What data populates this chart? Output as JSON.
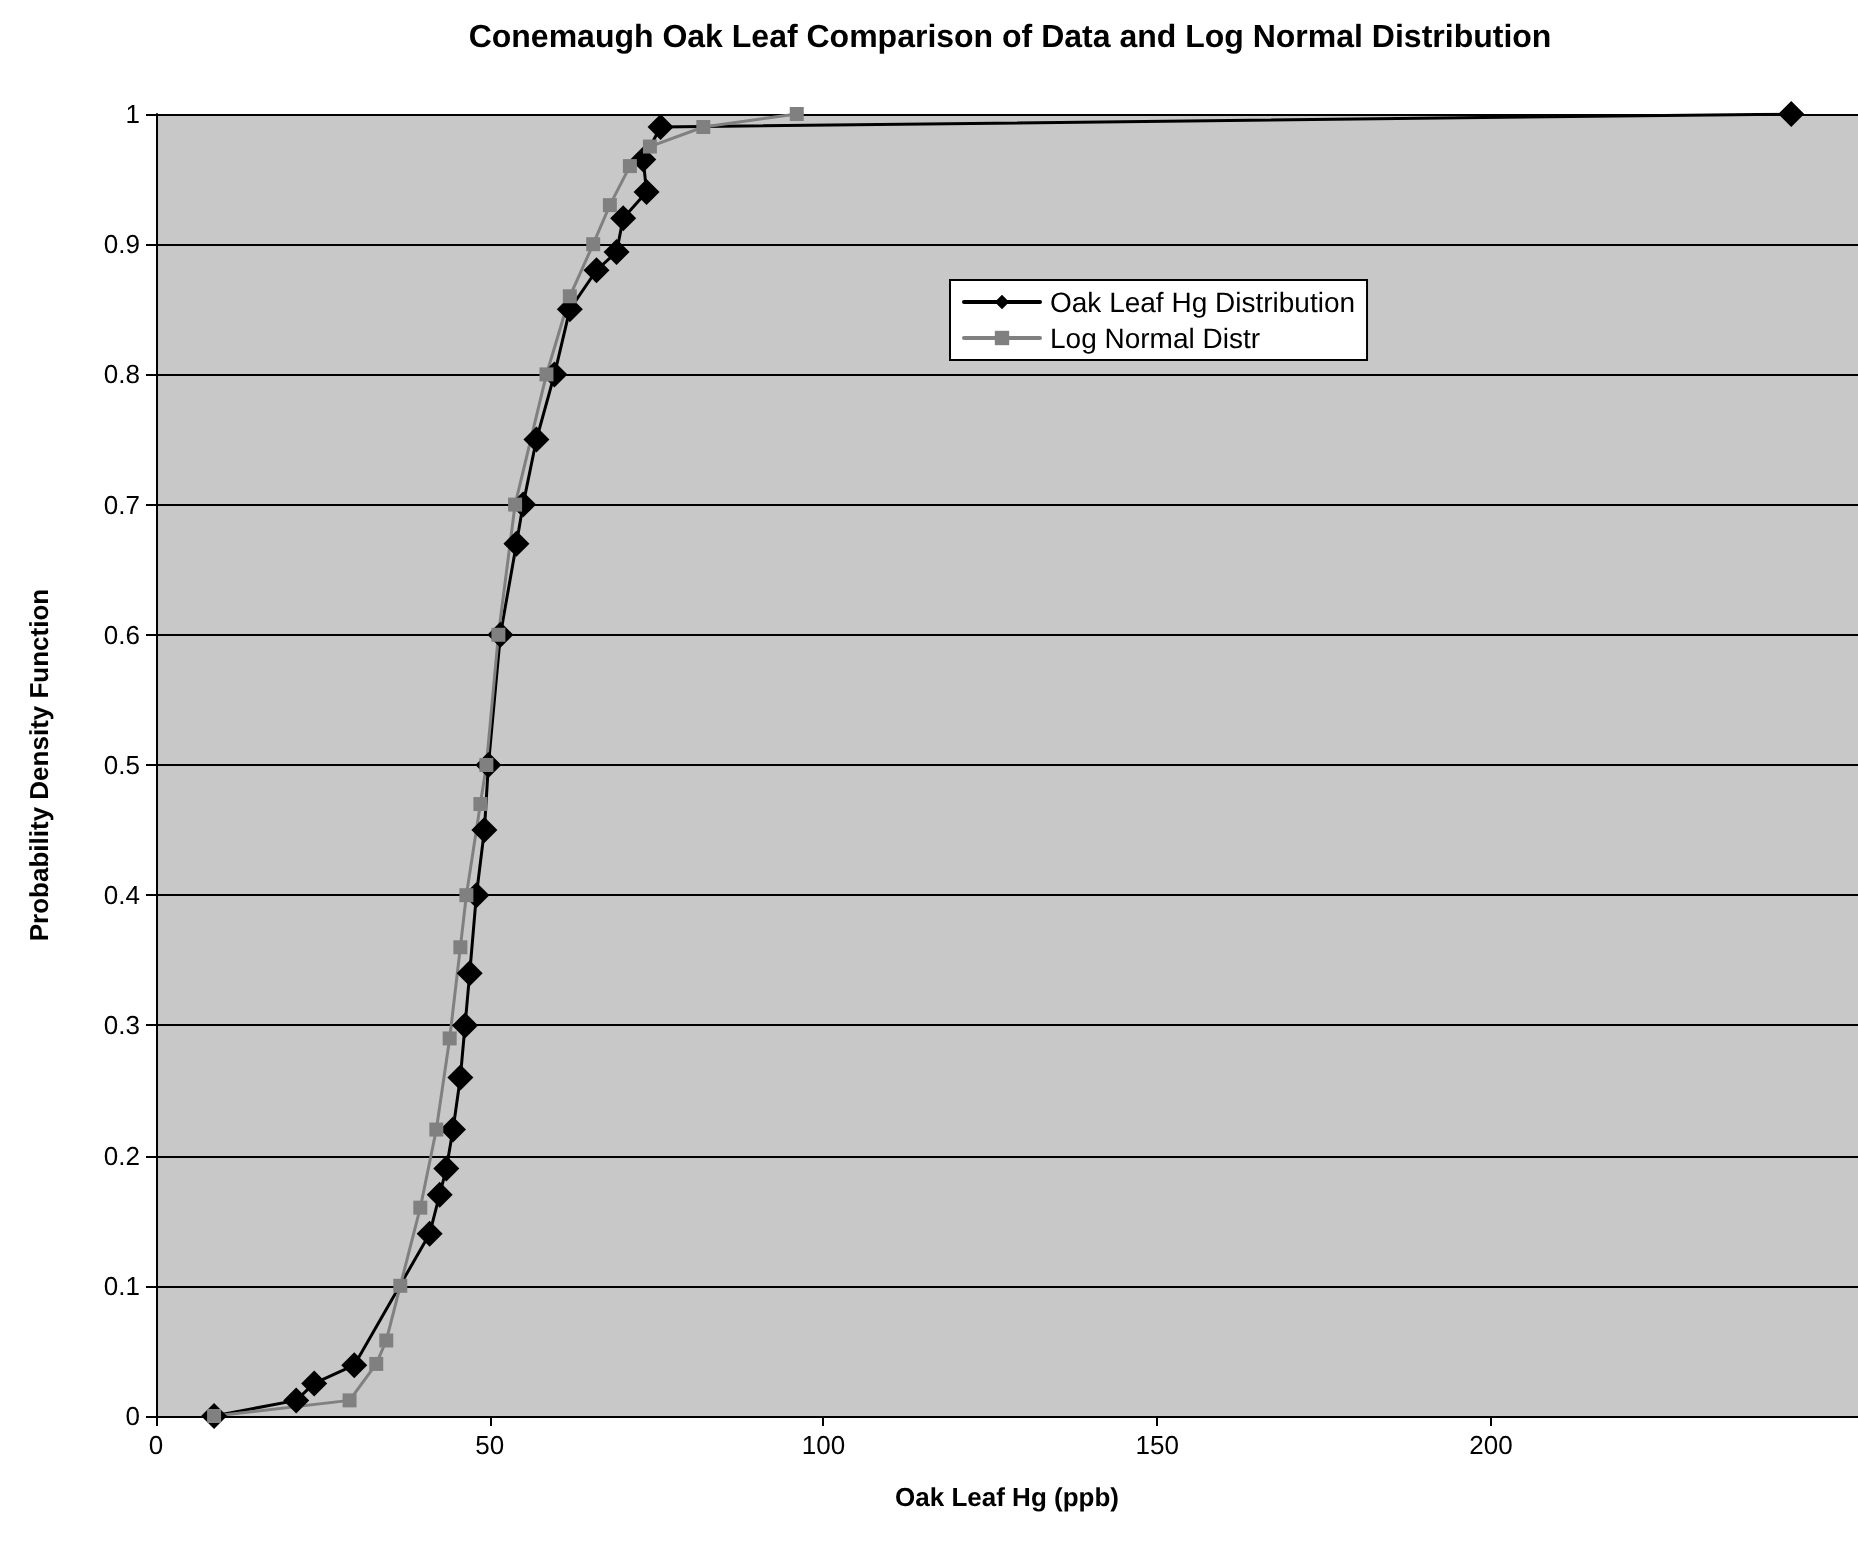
{
  "chart_data": {
    "type": "line",
    "title": "Conemaugh Oak Leaf Comparison of Data and Log Normal Distribution",
    "xlabel": "Oak Leaf Hg (ppb)",
    "ylabel": "Probability Density Function",
    "xlim": [
      0,
      255
    ],
    "xticks": [
      0,
      50,
      100,
      150,
      200
    ],
    "ylim": [
      0,
      1
    ],
    "yticks": [
      0,
      0.1,
      0.2,
      0.3,
      0.4,
      0.5,
      0.6,
      0.7,
      0.8,
      0.9,
      1
    ],
    "grid": "y",
    "legend": "top",
    "series": [
      {
        "name": "Oak Leaf Hg Distribution",
        "color": "#000000",
        "marker": "diamond",
        "x": [
          8.7,
          21,
          23.7,
          29.7,
          41,
          42.5,
          43.5,
          44.5,
          45.6,
          46.3,
          47,
          48,
          49.2,
          49.8,
          51.6,
          54,
          55,
          57,
          59.7,
          62,
          66,
          69,
          70,
          73.5,
          73,
          75.6,
          245
        ],
        "values": [
          0,
          0.012,
          0.025,
          0.039,
          0.14,
          0.17,
          0.19,
          0.22,
          0.26,
          0.3,
          0.34,
          0.4,
          0.45,
          0.5,
          0.6,
          0.67,
          0.7,
          0.75,
          0.8,
          0.85,
          0.88,
          0.894,
          0.92,
          0.94,
          0.965,
          0.99,
          1
        ]
      },
      {
        "name": "Log Normal Distr",
        "color": "#808080",
        "marker": "square",
        "x": [
          8.7,
          29,
          33,
          34.5,
          36.6,
          39.6,
          42,
          44,
          45.6,
          46.5,
          48.6,
          49.5,
          51.3,
          53.8,
          58.5,
          62,
          65.5,
          68,
          71,
          74,
          82,
          96
        ],
        "values": [
          0,
          0.012,
          0.04,
          0.058,
          0.1,
          0.16,
          0.22,
          0.29,
          0.36,
          0.4,
          0.47,
          0.5,
          0.6,
          0.7,
          0.8,
          0.86,
          0.9,
          0.93,
          0.96,
          0.975,
          0.99,
          1
        ]
      }
    ]
  }
}
